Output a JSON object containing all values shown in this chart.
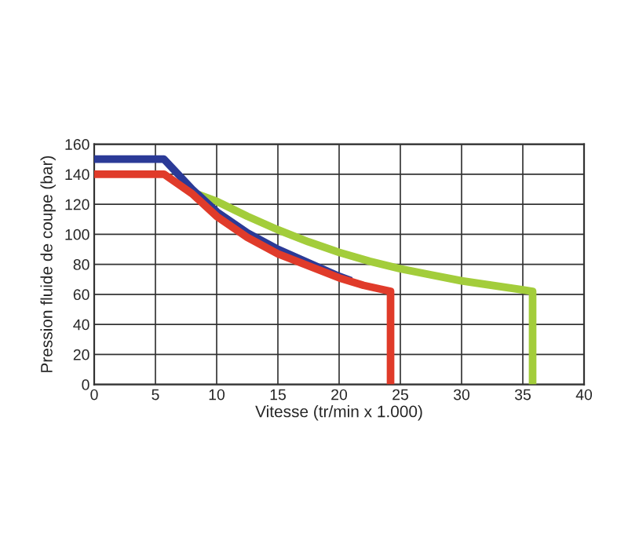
{
  "chart_data": {
    "type": "line",
    "xlabel": "Vitesse (tr/min x 1.000)",
    "ylabel": "Pression fluide de coupe (bar)",
    "xlim": [
      0,
      40
    ],
    "xticks": [
      0,
      5,
      10,
      15,
      20,
      25,
      30,
      35,
      40
    ],
    "ylim": [
      0,
      160
    ],
    "yticks": [
      0,
      20,
      40,
      60,
      80,
      100,
      120,
      140,
      160
    ],
    "grid": true,
    "legend": false,
    "marker": "none",
    "line_style": "solid",
    "series": [
      {
        "color": "#a3cd3b",
        "x": [
          8,
          10,
          12.5,
          15,
          17.5,
          20,
          22.5,
          25,
          27.5,
          30,
          32.5,
          35,
          35.8,
          35.8
        ],
        "values": [
          128,
          122,
          112,
          103,
          95,
          88,
          82,
          77,
          73,
          69,
          66,
          63,
          62,
          0
        ]
      },
      {
        "color": "#2b3a97",
        "x": [
          0,
          5.7,
          8,
          10,
          12.5,
          15,
          17.5,
          20,
          21
        ],
        "values": [
          150,
          150,
          130,
          115,
          101,
          90,
          81,
          72,
          69
        ]
      },
      {
        "color": "#e03b2a",
        "x": [
          0,
          5.7,
          8,
          10,
          12.5,
          15,
          17.5,
          20,
          22,
          24.2,
          24.2
        ],
        "values": [
          140,
          140,
          127,
          112,
          98,
          87,
          79,
          71,
          66,
          62,
          0
        ]
      }
    ]
  }
}
